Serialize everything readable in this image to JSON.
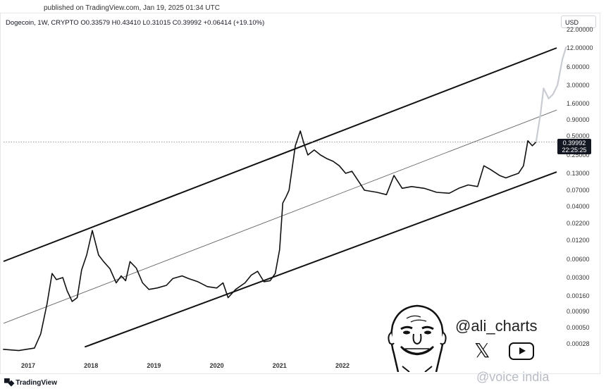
{
  "header": {
    "published": "published on TradingView.com, Jan 19, 2025 01:34 UTC",
    "symbol": "Dogecoin, 1W, CRYPTO",
    "ohlc": "O0.33579  H0.43410  L0.31015  C0.39992  +0.06414 (+19.10%)",
    "currency": "USD"
  },
  "price_tag": {
    "price": "0.39992",
    "countdown": "22:25:25"
  },
  "footer": {
    "brand": "TradingView"
  },
  "overlay": {
    "handle": "@ali_charts",
    "watermark": "@voice india",
    "icons": [
      "caricature-face-icon",
      "x-logo-icon",
      "youtube-play-icon"
    ]
  },
  "colors": {
    "price_line": "#111111",
    "projection": "#c9ccd2",
    "channel": "#111111",
    "midline": "#666666"
  },
  "chart_data": {
    "type": "line",
    "y_scale": "log",
    "ylim": [
      0.0002,
      22
    ],
    "y_ticks": [
      "22.00000",
      "12.00000",
      "6.00000",
      "3.00000",
      "1.60000",
      "0.90000",
      "0.50000",
      "0.25000",
      "0.13000",
      "0.07000",
      "0.04000",
      "0.02200",
      "0.01200",
      "0.00600",
      "0.00300",
      "0.00160",
      "0.00090",
      "0.00050",
      "0.00028"
    ],
    "x_ticks": [
      "2017",
      "2018",
      "2019",
      "2020",
      "2021",
      "2022"
    ],
    "xlim": [
      2016.6,
      2025.6
    ],
    "grid": false,
    "series": [
      {
        "values": [
          [
            2016.6,
            0.00023
          ],
          [
            2016.85,
            0.00022
          ],
          [
            2017.1,
            0.00024
          ],
          [
            2017.2,
            0.0004
          ],
          [
            2017.3,
            0.0012
          ],
          [
            2017.38,
            0.0035
          ],
          [
            2017.45,
            0.0028
          ],
          [
            2017.55,
            0.003
          ],
          [
            2017.62,
            0.0019
          ],
          [
            2017.7,
            0.0013
          ],
          [
            2017.78,
            0.0015
          ],
          [
            2017.85,
            0.004
          ],
          [
            2017.93,
            0.007
          ],
          [
            2018.02,
            0.017
          ],
          [
            2018.12,
            0.007
          ],
          [
            2018.2,
            0.0055
          ],
          [
            2018.3,
            0.0042
          ],
          [
            2018.4,
            0.0025
          ],
          [
            2018.48,
            0.0032
          ],
          [
            2018.55,
            0.0027
          ],
          [
            2018.62,
            0.0055
          ],
          [
            2018.72,
            0.0043
          ],
          [
            2018.82,
            0.0025
          ],
          [
            2018.92,
            0.002
          ],
          [
            2019.05,
            0.0021
          ],
          [
            2019.2,
            0.0023
          ],
          [
            2019.3,
            0.0029
          ],
          [
            2019.45,
            0.0032
          ],
          [
            2019.55,
            0.0029
          ],
          [
            2019.7,
            0.0026
          ],
          [
            2019.85,
            0.0022
          ],
          [
            2020.0,
            0.0021
          ],
          [
            2020.1,
            0.0025
          ],
          [
            2020.18,
            0.0015
          ],
          [
            2020.3,
            0.002
          ],
          [
            2020.45,
            0.0025
          ],
          [
            2020.55,
            0.0033
          ],
          [
            2020.65,
            0.0038
          ],
          [
            2020.75,
            0.0026
          ],
          [
            2020.85,
            0.0027
          ],
          [
            2020.93,
            0.0035
          ],
          [
            2021.0,
            0.0085
          ],
          [
            2021.05,
            0.045
          ],
          [
            2021.1,
            0.055
          ],
          [
            2021.15,
            0.07
          ],
          [
            2021.25,
            0.35
          ],
          [
            2021.33,
            0.6
          ],
          [
            2021.38,
            0.4
          ],
          [
            2021.45,
            0.25
          ],
          [
            2021.55,
            0.3
          ],
          [
            2021.65,
            0.25
          ],
          [
            2021.75,
            0.22
          ],
          [
            2021.85,
            0.2
          ],
          [
            2021.95,
            0.17
          ],
          [
            2022.05,
            0.13
          ],
          [
            2022.15,
            0.14
          ],
          [
            2022.35,
            0.07
          ],
          [
            2022.55,
            0.065
          ],
          [
            2022.7,
            0.06
          ],
          [
            2022.82,
            0.12
          ],
          [
            2022.95,
            0.075
          ],
          [
            2023.1,
            0.08
          ],
          [
            2023.3,
            0.075
          ],
          [
            2023.5,
            0.065
          ],
          [
            2023.7,
            0.063
          ],
          [
            2023.85,
            0.075
          ],
          [
            2024.0,
            0.085
          ],
          [
            2024.15,
            0.08
          ],
          [
            2024.25,
            0.17
          ],
          [
            2024.35,
            0.15
          ],
          [
            2024.5,
            0.12
          ],
          [
            2024.6,
            0.11
          ],
          [
            2024.7,
            0.12
          ],
          [
            2024.8,
            0.13
          ],
          [
            2024.88,
            0.17
          ],
          [
            2024.95,
            0.42
          ],
          [
            2025.02,
            0.35
          ],
          [
            2025.08,
            0.4
          ]
        ]
      },
      {
        "values": [
          [
            2025.08,
            0.4
          ],
          [
            2025.15,
            1.1
          ],
          [
            2025.2,
            2.7
          ],
          [
            2025.28,
            1.9
          ],
          [
            2025.35,
            2.2
          ],
          [
            2025.42,
            3.0
          ],
          [
            2025.5,
            8.0
          ],
          [
            2025.56,
            12.5
          ]
        ]
      }
    ],
    "annotations": [
      {
        "label": "upper-channel",
        "values": [
          [
            2016.6,
            0.0055
          ],
          [
            2025.6,
            14.0
          ]
        ]
      },
      {
        "label": "channel-midline",
        "values": [
          [
            2016.6,
            0.00058
          ],
          [
            2025.6,
            1.5
          ]
        ]
      },
      {
        "label": "lower-channel",
        "values": [
          [
            2017.9,
            0.00025
          ],
          [
            2025.6,
            0.16
          ]
        ]
      },
      {
        "label": "current-price-level",
        "values": [
          [
            2016.6,
            0.4
          ],
          [
            2025.6,
            0.4
          ]
        ]
      }
    ]
  }
}
